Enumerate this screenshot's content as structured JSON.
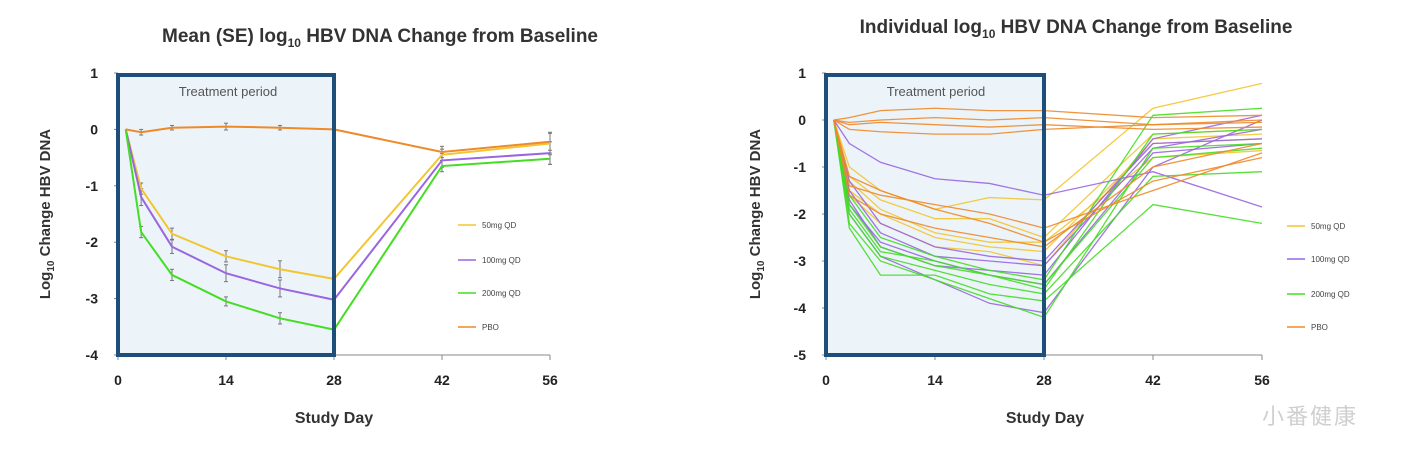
{
  "watermark": "小番健康",
  "chart_data": [
    {
      "type": "line",
      "title": {
        "prefix": "Mean (SE) log",
        "subscript": "10",
        "suffix": " HBV DNA Change from Baseline"
      },
      "ylabel": {
        "prefix": "Log",
        "subscript": "10",
        "suffix": " Change HBV DNA"
      },
      "xlabel": "Study Day",
      "xticks": [
        0,
        14,
        28,
        42,
        56
      ],
      "yticks": [
        1,
        0,
        -1,
        -2,
        -3,
        -4
      ],
      "xlim": [
        0,
        56
      ],
      "ylim": [
        -4,
        1
      ],
      "treatment_period": {
        "label": "Treatment period",
        "x_range": [
          0,
          28
        ]
      },
      "legend_position": "right",
      "series": [
        {
          "name": "50mg QD",
          "color": "#f2c531",
          "points": [
            [
              1,
              0
            ],
            [
              3,
              -1.05
            ],
            [
              7,
              -1.85
            ],
            [
              14,
              -2.25
            ],
            [
              21,
              -2.48
            ],
            [
              28,
              -2.65
            ],
            [
              42,
              -0.45
            ],
            [
              56,
              -0.25
            ]
          ],
          "error": [
            0,
            0.1,
            0.1,
            0.1,
            0.15,
            0.15,
            0.1,
            0.2
          ]
        },
        {
          "name": "100mg QD",
          "color": "#9966e0",
          "points": [
            [
              1,
              0
            ],
            [
              3,
              -1.2
            ],
            [
              7,
              -2.08
            ],
            [
              14,
              -2.55
            ],
            [
              21,
              -2.82
            ],
            [
              28,
              -3.02
            ],
            [
              42,
              -0.55
            ],
            [
              56,
              -0.42
            ]
          ],
          "error": [
            0,
            0.15,
            0.12,
            0.15,
            0.15,
            0.2,
            0.12,
            0.2
          ]
        },
        {
          "name": "200mg QD",
          "color": "#44dd22",
          "points": [
            [
              1,
              0
            ],
            [
              3,
              -1.82
            ],
            [
              7,
              -2.58
            ],
            [
              14,
              -3.05
            ],
            [
              21,
              -3.35
            ],
            [
              28,
              -3.55
            ],
            [
              42,
              -0.65
            ],
            [
              56,
              -0.52
            ]
          ],
          "error": [
            0,
            0.1,
            0.1,
            0.08,
            0.1,
            0.15,
            0.1,
            0.1
          ]
        },
        {
          "name": "PBO",
          "color": "#ee8a2a",
          "points": [
            [
              1,
              0
            ],
            [
              3,
              -0.05
            ],
            [
              7,
              0.03
            ],
            [
              14,
              0.05
            ],
            [
              21,
              0.03
            ],
            [
              28,
              0.0
            ],
            [
              42,
              -0.4
            ],
            [
              56,
              -0.22
            ]
          ],
          "error": [
            0,
            0.05,
            0.04,
            0.06,
            0.04,
            0.05,
            0.1,
            0.15
          ]
        }
      ]
    },
    {
      "type": "line",
      "title": {
        "prefix": "Individual log",
        "subscript": "10",
        "suffix": " HBV DNA Change from Baseline"
      },
      "ylabel": {
        "prefix": "Log",
        "subscript": "10",
        "suffix": " Change HBV DNA"
      },
      "xlabel": "Study Day",
      "xticks": [
        0,
        14,
        28,
        42,
        56
      ],
      "yticks": [
        1,
        0,
        -1,
        -2,
        -3,
        -4,
        -5
      ],
      "xlim": [
        0,
        56
      ],
      "ylim": [
        -5,
        1
      ],
      "treatment_period": {
        "label": "Treatment period",
        "x_range": [
          0,
          28
        ]
      },
      "legend_position": "right",
      "x_days": [
        1,
        3,
        7,
        14,
        21,
        28,
        42,
        56
      ],
      "series": [
        {
          "name": "50mg QD",
          "color": "#f2c531",
          "lines": [
            [
              0,
              -1.0,
              -1.5,
              -1.9,
              -1.65,
              -1.7,
              0.25,
              0.78
            ],
            [
              0,
              -1.2,
              -1.7,
              -2.1,
              -2.1,
              -2.5,
              -0.3,
              -0.2
            ],
            [
              0,
              -1.5,
              -2.0,
              -2.5,
              -2.7,
              -2.8,
              -0.5,
              -0.4
            ],
            [
              0,
              -1.3,
              -1.9,
              -2.4,
              -2.6,
              -2.6,
              -0.8,
              -0.65
            ],
            [
              0,
              -1.6,
              -2.2,
              -2.7,
              -2.8,
              -3.1,
              -0.4,
              -0.3
            ]
          ]
        },
        {
          "name": "100mg QD",
          "color": "#9966e0",
          "lines": [
            [
              0,
              -0.5,
              -0.9,
              -1.25,
              -1.35,
              -1.6,
              -1.1,
              -1.85
            ],
            [
              0,
              -1.3,
              -2.2,
              -2.7,
              -2.9,
              -3.0,
              -0.5,
              -0.4
            ],
            [
              0,
              -1.8,
              -2.6,
              -3.0,
              -3.3,
              -3.5,
              -0.7,
              -0.5
            ],
            [
              0,
              -1.5,
              -2.4,
              -2.9,
              -3.0,
              -3.1,
              -0.6,
              -0.2
            ],
            [
              0,
              -2.0,
              -2.9,
              -3.4,
              -3.9,
              -4.1,
              -1.0,
              0.0
            ],
            [
              0,
              -1.7,
              -2.7,
              -3.1,
              -3.2,
              -3.3,
              -0.4,
              0.1
            ]
          ]
        },
        {
          "name": "200mg QD",
          "color": "#44dd22",
          "lines": [
            [
              0,
              -2.3,
              -3.3,
              -3.3,
              -3.7,
              -3.85,
              -1.8,
              -2.2
            ],
            [
              0,
              -1.8,
              -2.7,
              -3.1,
              -3.3,
              -3.5,
              -0.8,
              -0.6
            ],
            [
              0,
              -2.0,
              -2.9,
              -3.2,
              -3.5,
              -3.7,
              -1.2,
              -1.1
            ],
            [
              0,
              -1.6,
              -2.5,
              -2.9,
              -3.2,
              -3.4,
              0.1,
              0.25
            ],
            [
              0,
              -2.2,
              -3.0,
              -3.4,
              -3.8,
              -4.2,
              -0.6,
              -0.5
            ],
            [
              0,
              -1.9,
              -2.8,
              -3.0,
              -3.3,
              -3.6,
              -0.3,
              -0.2
            ]
          ]
        },
        {
          "name": "PBO",
          "color": "#ee8a2a",
          "lines": [
            [
              0,
              0.05,
              0.2,
              0.25,
              0.2,
              0.2,
              0.05,
              0.1
            ],
            [
              0,
              -0.05,
              0.0,
              0.05,
              0.0,
              0.05,
              -0.1,
              -0.05
            ],
            [
              0,
              -0.1,
              -0.05,
              -0.1,
              -0.15,
              -0.1,
              -0.2,
              -0.15
            ],
            [
              0,
              -0.2,
              -0.25,
              -0.3,
              -0.3,
              -0.2,
              -0.1,
              0.0
            ],
            [
              0,
              -1.4,
              -1.6,
              -1.8,
              -2.0,
              -2.3,
              -1.5,
              -0.7
            ],
            [
              0,
              -1.2,
              -1.5,
              -1.9,
              -2.2,
              -2.6,
              -1.3,
              -0.8
            ],
            [
              0,
              -1.6,
              -2.0,
              -2.3,
              -2.5,
              -2.7,
              -1.0,
              -0.5
            ]
          ]
        }
      ]
    }
  ]
}
